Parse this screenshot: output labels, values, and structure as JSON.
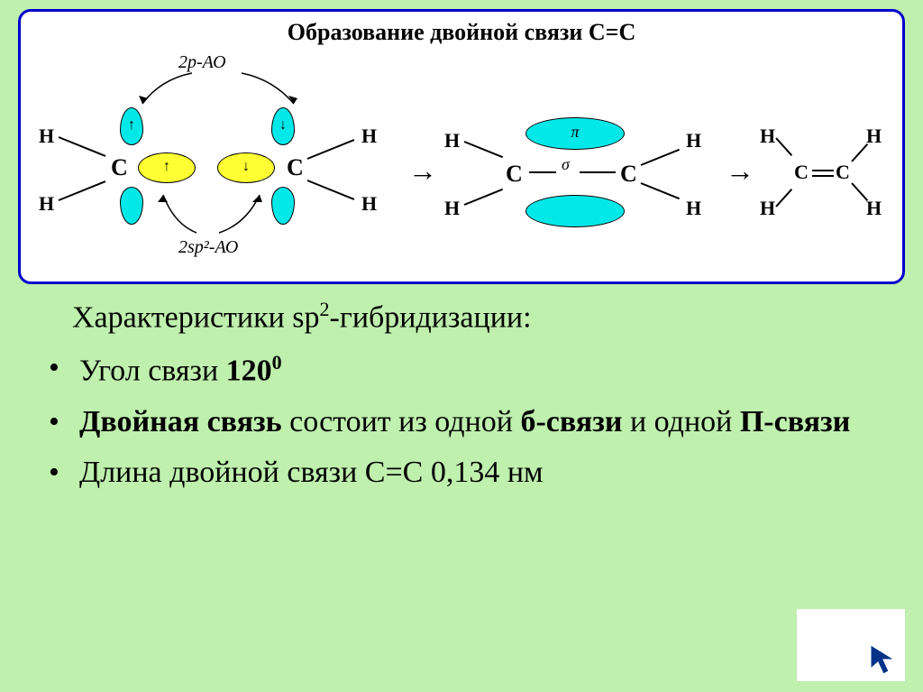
{
  "diagram": {
    "title": "Образование двойной связи С=С",
    "border_color": "#0000cc",
    "background": "#ffffff",
    "annotations": {
      "p_orbital": "2p-АО",
      "sp2_orbital": "2sp²-АО"
    },
    "stage1": {
      "atoms_H": [
        "Н",
        "Н",
        "Н",
        "Н"
      ],
      "atoms_C": [
        "С",
        "С"
      ],
      "spin_up": "↑",
      "spin_down": "↓",
      "orbital_color_p": "#00e8e8",
      "orbital_color_sp2": "#ffff33"
    },
    "stage2": {
      "atoms_H": [
        "Н",
        "Н",
        "Н",
        "Н"
      ],
      "atoms_C": [
        "С",
        "С"
      ],
      "pi_label": "π",
      "sigma_label": "σ",
      "pi_color": "#00e8e8"
    },
    "stage3": {
      "atoms_H": [
        "Н",
        "Н",
        "Н",
        "Н"
      ],
      "atoms_C": [
        "С",
        "С"
      ]
    },
    "arrow": "→"
  },
  "text": {
    "heading_prefix": "Характеристики sp",
    "heading_sup": "2",
    "heading_suffix": "-гибридизации:",
    "bullets": [
      {
        "parts": [
          {
            "t": "Угол связи ",
            "b": false
          },
          {
            "t": "120",
            "b": true
          },
          {
            "t": "0",
            "b": true,
            "sup": true
          }
        ]
      },
      {
        "parts": [
          {
            "t": "Двойная связь ",
            "b": true
          },
          {
            "t": "состоит из одной ",
            "b": false
          },
          {
            "t": "б-связи",
            "b": true
          },
          {
            "t": " и одной ",
            "b": false
          },
          {
            "t": "П-связи",
            "b": true
          }
        ]
      },
      {
        "parts": [
          {
            "t": "Длина двойной связи С=С  0,134 нм",
            "b": false
          }
        ]
      }
    ]
  },
  "colors": {
    "page_bg": "#bff0ae",
    "text": "#000000"
  }
}
